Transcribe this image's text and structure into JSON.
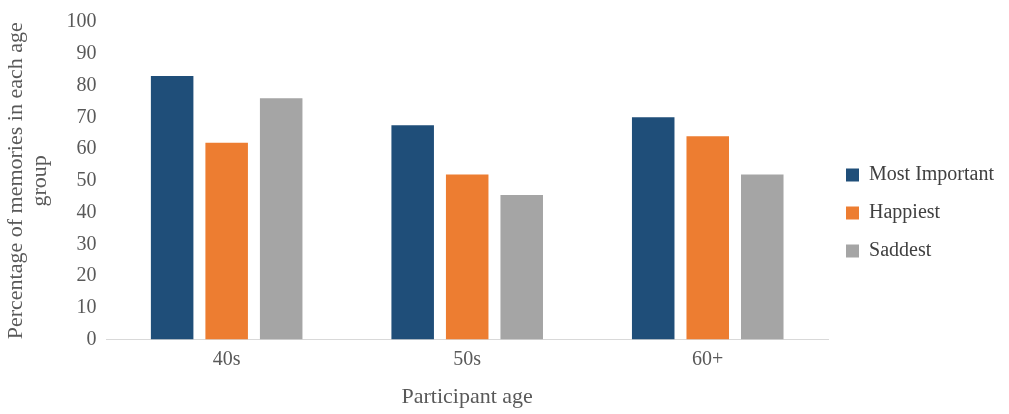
{
  "chart_data": {
    "type": "bar",
    "xlabel": "Participant age",
    "ylabel": "Percentage of memories in each age group",
    "categories": [
      "40s",
      "50s",
      "60+"
    ],
    "series": [
      {
        "name": "Most Important",
        "color": "#1f4e79",
        "values": [
          83,
          67.5,
          70
        ]
      },
      {
        "name": "Happiest",
        "color": "#ed7d31",
        "values": [
          62,
          52,
          64
        ]
      },
      {
        "name": "Saddest",
        "color": "#a5a5a5",
        "values": [
          76,
          45.5,
          52
        ]
      }
    ],
    "ylim": [
      0,
      100
    ],
    "yticks": [
      0,
      10,
      20,
      30,
      40,
      50,
      60,
      70,
      80,
      90,
      100
    ],
    "grid": false,
    "legend": "right"
  }
}
